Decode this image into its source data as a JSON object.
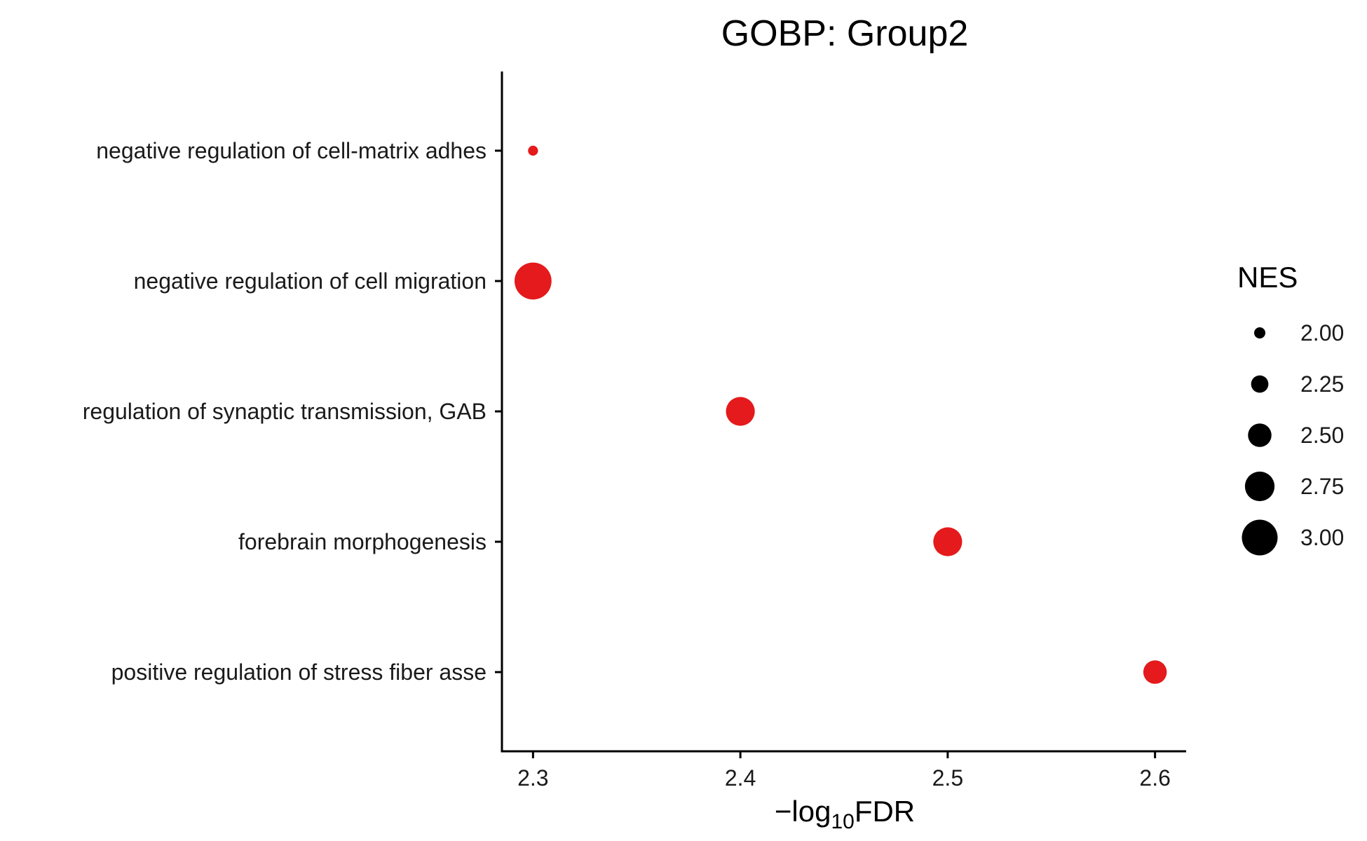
{
  "chart_data": {
    "type": "scatter",
    "title": "GOBP: Group2",
    "xlabel": "−log10FDR",
    "xlabel_parts": {
      "prefix": "−log",
      "sub": "10",
      "suffix": "FDR"
    },
    "ylabel": "",
    "xlim": [
      2.285,
      2.615
    ],
    "x_ticks": [
      "2.3",
      "2.4",
      "2.5",
      "2.6"
    ],
    "categories": [
      "negative regulation of cell-matrix adhes",
      "negative regulation of cell migration",
      "regulation of synaptic transmission, GAB",
      "forebrain morphogenesis",
      "positive regulation of stress fiber asse"
    ],
    "points": [
      {
        "category": "negative regulation of cell-matrix adhes",
        "x": 2.3,
        "nes": 1.95
      },
      {
        "category": "negative regulation of cell migration",
        "x": 2.3,
        "nes": 3.05
      },
      {
        "category": "regulation of synaptic transmission, GAB",
        "x": 2.4,
        "nes": 2.72
      },
      {
        "category": "forebrain morphogenesis",
        "x": 2.5,
        "nes": 2.72
      },
      {
        "category": "positive regulation of stress fiber asse",
        "x": 2.6,
        "nes": 2.5
      }
    ],
    "point_color": "#e41a1c",
    "legend": {
      "title": "NES",
      "position": "right",
      "entries": [
        {
          "label": "2.00",
          "value": 2.0
        },
        {
          "label": "2.25",
          "value": 2.25
        },
        {
          "label": "2.50",
          "value": 2.5
        },
        {
          "label": "2.75",
          "value": 2.75
        },
        {
          "label": "3.00",
          "value": 3.0
        }
      ]
    },
    "grid": false
  }
}
